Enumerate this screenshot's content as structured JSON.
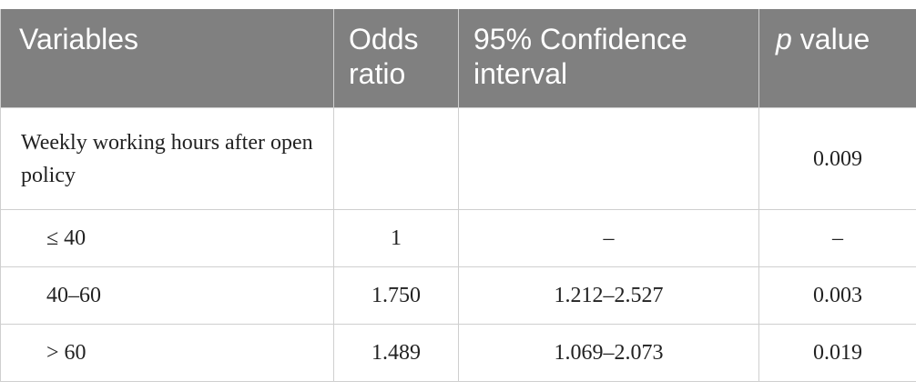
{
  "table": {
    "header": [
      "Variables",
      "Odds ratio",
      "95% Confidence interval",
      [
        "p",
        "value"
      ]
    ],
    "rows": [
      [
        "Weekly working hours after open policy",
        "",
        "",
        "0.009"
      ],
      [
        "≤ 40",
        "1",
        "–",
        "–"
      ],
      [
        "40–60",
        "1.750",
        "1.212–2.527",
        "0.003"
      ],
      [
        "> 60",
        "1.489",
        "1.069–2.073",
        "0.019"
      ]
    ]
  }
}
